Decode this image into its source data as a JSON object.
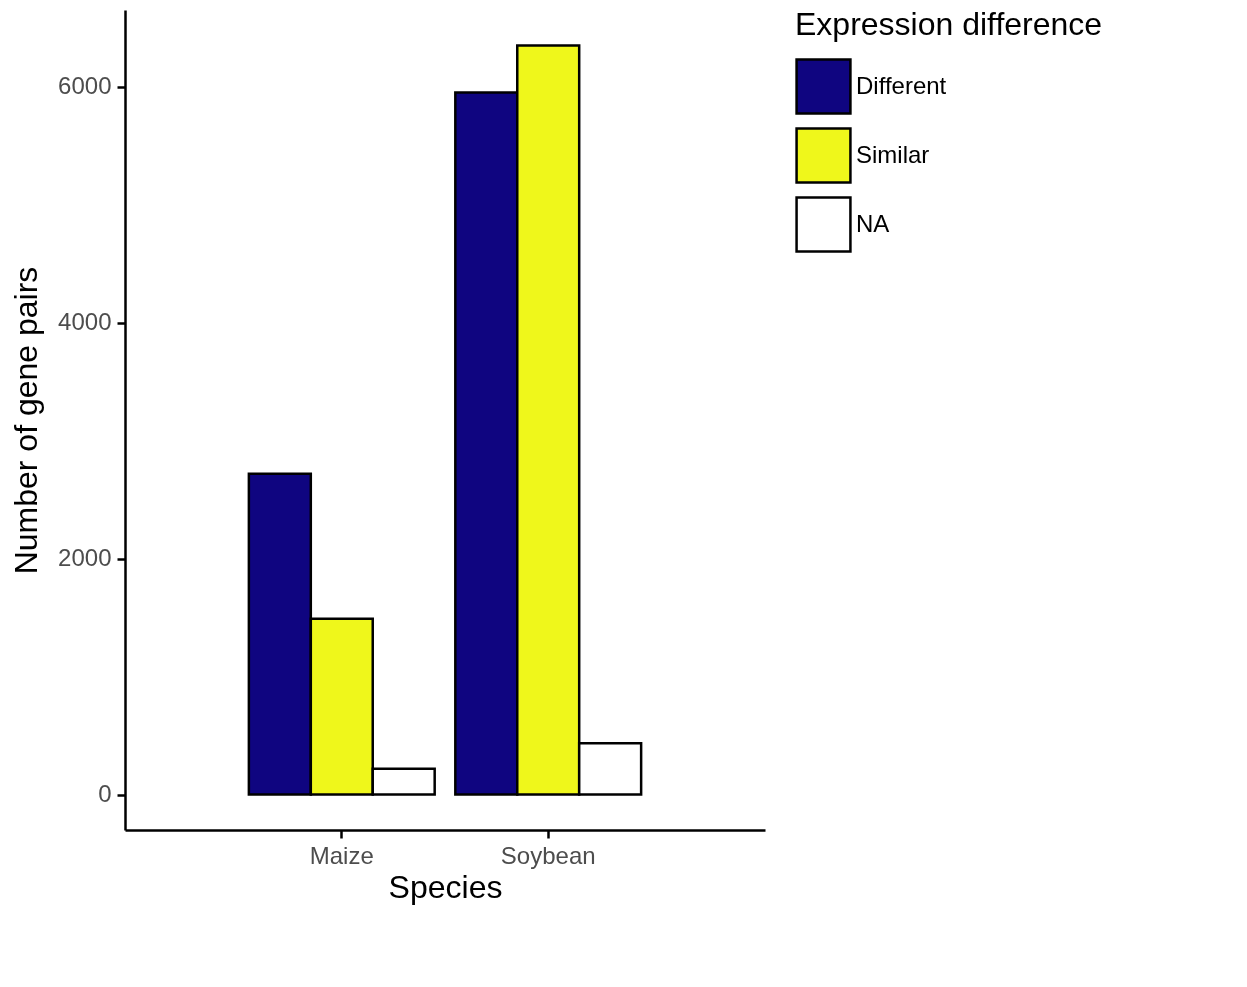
{
  "chart_data": {
    "type": "bar",
    "xlabel": "Species",
    "ylabel": "Number of gene pairs",
    "legend_title": "Expression difference",
    "categories": [
      "Maize",
      "Soybean"
    ],
    "series": [
      {
        "name": "Different",
        "color": "#0f0580",
        "values": [
          2720,
          5950
        ]
      },
      {
        "name": "Similar",
        "color": "#eff71b",
        "values": [
          1490,
          6350
        ]
      },
      {
        "name": "NA",
        "color": "#ffffff",
        "values": [
          220,
          435
        ]
      }
    ],
    "ylim": [
      -300,
      6650
    ],
    "yticks": [
      0,
      2000,
      4000,
      6000
    ],
    "grid": false,
    "legend": "right"
  }
}
